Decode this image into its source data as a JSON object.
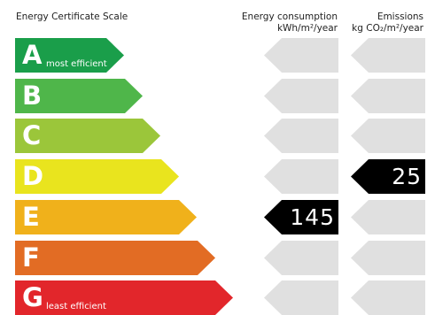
{
  "header": {
    "title": "Energy Certificate Scale",
    "energy_line1": "Energy consumption",
    "energy_line2": "kWh/m²/year",
    "emissions_line1": "Emissions",
    "emissions_line2": "kg CO₂/m²/year"
  },
  "ratings": [
    {
      "letter": "A",
      "sublabel": "most efficient",
      "color": "#1a9e4a"
    },
    {
      "letter": "B",
      "sublabel": "",
      "color": "#4fb64a"
    },
    {
      "letter": "C",
      "sublabel": "",
      "color": "#9bc63a"
    },
    {
      "letter": "D",
      "sublabel": "",
      "color": "#e9e41e"
    },
    {
      "letter": "E",
      "sublabel": "",
      "color": "#f0b11b"
    },
    {
      "letter": "F",
      "sublabel": "",
      "color": "#e26c24"
    },
    {
      "letter": "G",
      "sublabel": "least efficient",
      "color": "#e2262b"
    }
  ],
  "energy_consumption": {
    "rating": "E",
    "value": "145"
  },
  "emissions": {
    "rating": "D",
    "value": "25"
  },
  "colors": {
    "empty_indicator": "#e0e0e0",
    "active_indicator": "#000000"
  }
}
